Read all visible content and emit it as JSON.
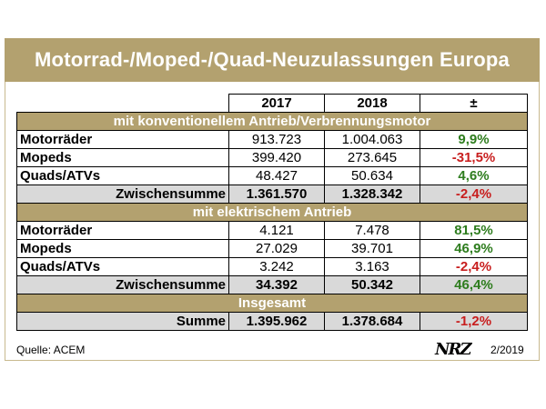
{
  "title": "Motorrad-/Moped-/Quad-Neuzulassungen Europa",
  "columns": [
    "2017",
    "2018",
    "±"
  ],
  "sections": [
    {
      "heading": "mit konventionellem Antrieb/Verbrennungsmotor",
      "rows": [
        {
          "label": "Motorräder",
          "v2017": "913.723",
          "v2018": "1.004.063",
          "change": "9,9%",
          "sign": "pos"
        },
        {
          "label": "Mopeds",
          "v2017": "399.420",
          "v2018": "273.645",
          "change": "-31,5%",
          "sign": "neg"
        },
        {
          "label": "Quads/ATVs",
          "v2017": "48.427",
          "v2018": "50.634",
          "change": "4,6%",
          "sign": "pos"
        }
      ],
      "subtotal": {
        "label": "Zwischensumme",
        "v2017": "1.361.570",
        "v2018": "1.328.342",
        "change": "-2,4%",
        "sign": "neg"
      }
    },
    {
      "heading": "mit elektrischem Antrieb",
      "rows": [
        {
          "label": "Motorräder",
          "v2017": "4.121",
          "v2018": "7.478",
          "change": "81,5%",
          "sign": "pos"
        },
        {
          "label": "Mopeds",
          "v2017": "27.029",
          "v2018": "39.701",
          "change": "46,9%",
          "sign": "pos"
        },
        {
          "label": "Quads/ATVs",
          "v2017": "3.242",
          "v2018": "3.163",
          "change": "-2,4%",
          "sign": "neg"
        }
      ],
      "subtotal": {
        "label": "Zwischensumme",
        "v2017": "34.392",
        "v2018": "50.342",
        "change": "46,4%",
        "sign": "pos"
      }
    }
  ],
  "total": {
    "heading": "Insgesamt",
    "label": "Summe",
    "v2017": "1.395.962",
    "v2018": "1.378.684",
    "change": "-1,2%",
    "sign": "neg"
  },
  "source": "Quelle: ACEM",
  "logo_text": "NRZ",
  "issue": "2/2019",
  "colors": {
    "accent": "#b3a16f",
    "positive": "#2e7d1e",
    "negative": "#c81e1e",
    "subtotal_bg": "#d9d9d9"
  }
}
